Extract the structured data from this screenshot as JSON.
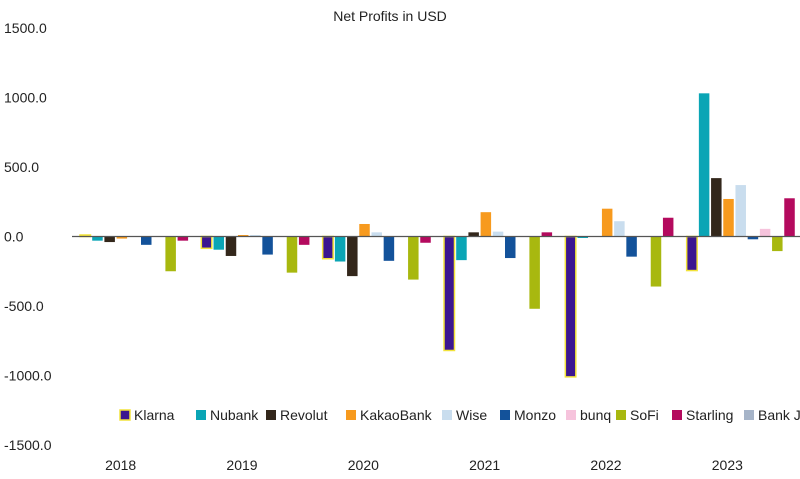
{
  "chart_data": {
    "type": "bar",
    "title": "Net Profits in USD",
    "xlabel": "",
    "ylabel": "",
    "ylim": [
      -1500,
      1500
    ],
    "yticks": [
      1500,
      1000,
      500,
      0,
      -500,
      -1000,
      -1500
    ],
    "ytick_labels": [
      "1500.0",
      "1000.0",
      "500.0",
      "0.0",
      "-500.0",
      "-1000.0",
      "-1500.0"
    ],
    "categories": [
      "2018",
      "2019",
      "2020",
      "2021",
      "2022",
      "2023"
    ],
    "legend_position": "bottom-right",
    "series": [
      {
        "name": "Klarna",
        "color": "#3b1690",
        "outline": "#f2e33a",
        "values": [
          10,
          -85,
          -160,
          -820,
          -1010,
          -245
        ]
      },
      {
        "name": "Nubank",
        "color": "#0aa5b5",
        "values": [
          -30,
          -95,
          -180,
          -170,
          -10,
          1030
        ]
      },
      {
        "name": "Revolut",
        "color": "#33271b",
        "values": [
          -40,
          -140,
          -285,
          30,
          0,
          420
        ]
      },
      {
        "name": "KakaoBank",
        "color": "#f79a1e",
        "values": [
          -15,
          5,
          90,
          175,
          200,
          270
        ]
      },
      {
        "name": "Wise",
        "color": "#c9ddee",
        "values": [
          0,
          5,
          30,
          35,
          110,
          370
        ]
      },
      {
        "name": "Monzo",
        "color": "#13529a",
        "values": [
          -60,
          -130,
          -175,
          -155,
          -145,
          -20
        ]
      },
      {
        "name": "bunq",
        "color": "#f6c3dc",
        "values": [
          0,
          0,
          0,
          0,
          0,
          55
        ]
      },
      {
        "name": "SoFi",
        "color": "#a8b80f",
        "values": [
          -250,
          -260,
          -310,
          -520,
          -360,
          -105
        ]
      },
      {
        "name": "Starling",
        "color": "#b40a5e",
        "values": [
          -30,
          -60,
          -45,
          30,
          135,
          275
        ]
      },
      {
        "name": "Bank Jago",
        "color": "#a6b4c8",
        "values": [
          0,
          0,
          0,
          0,
          0,
          0
        ]
      }
    ]
  }
}
